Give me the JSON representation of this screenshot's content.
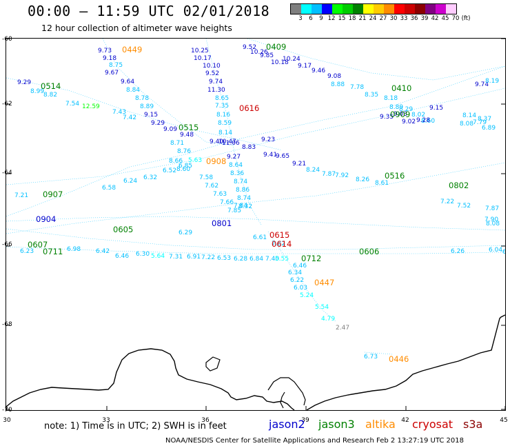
{
  "title": "00:00 – 11:59 UTC 02/01/2018",
  "subtitle": "12 hour collection of altimeter wave heights",
  "scale": {
    "colors": [
      "#7f7f7f",
      "#00ffff",
      "#00bfff",
      "#0000ff",
      "#00ff00",
      "#00cc00",
      "#008000",
      "#ffff00",
      "#ffcc00",
      "#ff8c00",
      "#ff0000",
      "#cc0000",
      "#8b0000",
      "#800080",
      "#cc00cc",
      "#ffccff"
    ],
    "labels": [
      "3",
      "6",
      "9",
      "12",
      "15",
      "18",
      "21",
      "24",
      "27",
      "30",
      "33",
      "36",
      "39",
      "42",
      "45",
      "70",
      "(ft)"
    ]
  },
  "latitudes": [
    "-60",
    "-62",
    "-64",
    "-66",
    "-68",
    "-70"
  ],
  "longitudes": [
    "30",
    "33",
    "36",
    "39",
    "42",
    "45"
  ],
  "note": "note:  1) Time is in UTC;  2) SWH is in feet",
  "satellites": [
    {
      "name": "jason2",
      "color": "#0000cc"
    },
    {
      "name": "jason3",
      "color": "#008000"
    },
    {
      "name": "altika",
      "color": "#ff8c00"
    },
    {
      "name": "cryosat",
      "color": "#cc0000"
    },
    {
      "name": "s3a",
      "color": "#8b0000"
    }
  ],
  "footer": "NOAA/NESDIS Center for Satellite Applications and Research     Feb  2 13:27:19 UTC 2018",
  "pass_labels": [
    {
      "t": "0449",
      "c": "#ff8c00"
    },
    {
      "t": "0409",
      "c": "#008000"
    },
    {
      "t": "0514",
      "c": "#008000"
    },
    {
      "t": "0410",
      "c": "#008000"
    },
    {
      "t": "0616",
      "c": "#cc0000"
    },
    {
      "t": "0909",
      "c": "#008000"
    },
    {
      "t": "0515",
      "c": "#008000"
    },
    {
      "t": "0908",
      "c": "#ff8c00"
    },
    {
      "t": "0516",
      "c": "#008000"
    },
    {
      "t": "0907",
      "c": "#008000"
    },
    {
      "t": "0802",
      "c": "#008000"
    },
    {
      "t": "0904",
      "c": "#0000cc"
    },
    {
      "t": "0801",
      "c": "#0000cc"
    },
    {
      "t": "0605",
      "c": "#008000"
    },
    {
      "t": "0615",
      "c": "#cc0000"
    },
    {
      "t": "0614",
      "c": "#cc0000"
    },
    {
      "t": "0607",
      "c": "#008000"
    },
    {
      "t": "0606",
      "c": "#008000"
    },
    {
      "t": "0711",
      "c": "#008000"
    },
    {
      "t": "0712",
      "c": "#008000"
    },
    {
      "t": "0447",
      "c": "#ff8c00"
    },
    {
      "t": "0446",
      "c": "#ff8c00"
    }
  ],
  "readings": [
    {
      "t": "9.73",
      "c": "#0000cc"
    },
    {
      "t": "9.18",
      "c": "#0000cc"
    },
    {
      "t": "8.75",
      "c": "#00bfff"
    },
    {
      "t": "9.67",
      "c": "#0000cc"
    },
    {
      "t": "9.64",
      "c": "#0000cc"
    },
    {
      "t": "8.84",
      "c": "#00bfff"
    },
    {
      "t": "8.78",
      "c": "#00bfff"
    },
    {
      "t": "8.89",
      "c": "#00bfff"
    },
    {
      "t": "9.15",
      "c": "#0000cc"
    },
    {
      "t": "9.29",
      "c": "#0000cc"
    },
    {
      "t": "9.09",
      "c": "#0000cc"
    },
    {
      "t": "9.48",
      "c": "#0000cc"
    },
    {
      "t": "8.71",
      "c": "#00bfff"
    },
    {
      "t": "8.76",
      "c": "#00bfff"
    },
    {
      "t": "8.66",
      "c": "#00bfff"
    },
    {
      "t": "8.60",
      "c": "#00bfff"
    },
    {
      "t": "7.58",
      "c": "#00bfff"
    },
    {
      "t": "7.62",
      "c": "#00bfff"
    },
    {
      "t": "7.63",
      "c": "#00bfff"
    },
    {
      "t": "7.66",
      "c": "#00bfff"
    },
    {
      "t": "7.85",
      "c": "#00bfff"
    },
    {
      "t": "10.25",
      "c": "#0000cc"
    },
    {
      "t": "10.17",
      "c": "#0000cc"
    },
    {
      "t": "10.10",
      "c": "#0000cc"
    },
    {
      "t": "9.52",
      "c": "#0000cc"
    },
    {
      "t": "9.74",
      "c": "#0000cc"
    },
    {
      "t": "11.30",
      "c": "#0000cc"
    },
    {
      "t": "8.65",
      "c": "#00bfff"
    },
    {
      "t": "7.35",
      "c": "#00bfff"
    },
    {
      "t": "8.16",
      "c": "#00bfff"
    },
    {
      "t": "8.59",
      "c": "#00bfff"
    },
    {
      "t": "8.14",
      "c": "#00bfff"
    },
    {
      "t": "10.47",
      "c": "#0000cc"
    },
    {
      "t": "11.06",
      "c": "#0000cc"
    },
    {
      "t": "9.40",
      "c": "#0000cc"
    },
    {
      "t": "9.27",
      "c": "#0000cc"
    },
    {
      "t": "8.64",
      "c": "#00bfff"
    },
    {
      "t": "8.36",
      "c": "#00bfff"
    },
    {
      "t": "8.74",
      "c": "#00bfff"
    },
    {
      "t": "8.86",
      "c": "#00bfff"
    },
    {
      "t": "8.74",
      "c": "#00bfff"
    },
    {
      "t": "8.32",
      "c": "#00bfff"
    },
    {
      "t": "9.52",
      "c": "#0000cc"
    },
    {
      "t": "10.26",
      "c": "#0000cc"
    },
    {
      "t": "9.85",
      "c": "#0000cc"
    },
    {
      "t": "10.18",
      "c": "#0000cc"
    },
    {
      "t": "10.24",
      "c": "#0000cc"
    },
    {
      "t": "9.17",
      "c": "#0000cc"
    },
    {
      "t": "9.46",
      "c": "#0000cc"
    },
    {
      "t": "9.08",
      "c": "#0000cc"
    },
    {
      "t": "8.88",
      "c": "#00bfff"
    },
    {
      "t": "7.78",
      "c": "#00bfff"
    },
    {
      "t": "8.35",
      "c": "#00bfff"
    },
    {
      "t": "8.18",
      "c": "#00bfff"
    },
    {
      "t": "8.89",
      "c": "#00bfff"
    },
    {
      "t": "9.03",
      "c": "#0000cc"
    },
    {
      "t": "9.02",
      "c": "#0000cc"
    },
    {
      "t": "9.15",
      "c": "#0000cc"
    },
    {
      "t": "9.74",
      "c": "#0000cc"
    },
    {
      "t": "8.19",
      "c": "#00bfff"
    },
    {
      "t": "9.35",
      "c": "#0000cc"
    },
    {
      "t": "8.02",
      "c": "#00bfff"
    },
    {
      "t": "8.60",
      "c": "#00bfff"
    },
    {
      "t": "9.23",
      "c": "#0000cc"
    },
    {
      "t": "8.83",
      "c": "#0000cc"
    },
    {
      "t": "9.41",
      "c": "#0000cc"
    },
    {
      "t": "9.65",
      "c": "#0000cc"
    },
    {
      "t": "9.21",
      "c": "#0000cc"
    },
    {
      "t": "8.24",
      "c": "#00bfff"
    },
    {
      "t": "7.87",
      "c": "#00bfff"
    },
    {
      "t": "7.92",
      "c": "#00bfff"
    },
    {
      "t": "8.26",
      "c": "#00bfff"
    },
    {
      "t": "8.61",
      "c": "#00bfff"
    },
    {
      "t": "8.29",
      "c": "#00bfff"
    },
    {
      "t": "9.28",
      "c": "#0000cc"
    },
    {
      "t": "8.08",
      "c": "#00bfff"
    },
    {
      "t": "8.37",
      "c": "#00bfff"
    },
    {
      "t": "9.29",
      "c": "#0000cc"
    },
    {
      "t": "8.99",
      "c": "#00bfff"
    },
    {
      "t": "8.82",
      "c": "#00bfff"
    },
    {
      "t": "7.54",
      "c": "#00bfff"
    },
    {
      "t": "12.59",
      "c": "#00ff00"
    },
    {
      "t": "7.43",
      "c": "#00bfff"
    },
    {
      "t": "7.42",
      "c": "#00bfff"
    },
    {
      "t": "6.58",
      "c": "#00bfff"
    },
    {
      "t": "6.24",
      "c": "#00bfff"
    },
    {
      "t": "6.32",
      "c": "#00bfff"
    },
    {
      "t": "6.52",
      "c": "#00bfff"
    },
    {
      "t": "6.85",
      "c": "#00bfff"
    },
    {
      "t": "5.63",
      "c": "#00ffff"
    },
    {
      "t": "7.21",
      "c": "#00bfff"
    },
    {
      "t": "7.22",
      "c": "#00bfff"
    },
    {
      "t": "7.52",
      "c": "#00bfff"
    },
    {
      "t": "7.87",
      "c": "#00bfff"
    },
    {
      "t": "7.90",
      "c": "#00bfff"
    },
    {
      "t": "8.08",
      "c": "#00bfff"
    },
    {
      "t": "8.14",
      "c": "#00bfff"
    },
    {
      "t": "7.79",
      "c": "#00bfff"
    },
    {
      "t": "6.89",
      "c": "#00bfff"
    },
    {
      "t": "6.46",
      "c": "#00bfff"
    },
    {
      "t": "6.34",
      "c": "#00bfff"
    },
    {
      "t": "6.22",
      "c": "#00bfff"
    },
    {
      "t": "6.03",
      "c": "#00bfff"
    },
    {
      "t": "5.24",
      "c": "#00ffff"
    },
    {
      "t": "5.54",
      "c": "#00ffff"
    },
    {
      "t": "4.79",
      "c": "#00ffff"
    },
    {
      "t": "2.47",
      "c": "#7f7f7f"
    },
    {
      "t": "6.73",
      "c": "#00bfff"
    },
    {
      "t": "6.23",
      "c": "#00bfff"
    },
    {
      "t": "6.98",
      "c": "#00bfff"
    },
    {
      "t": "6.42",
      "c": "#00bfff"
    },
    {
      "t": "6.46",
      "c": "#00bfff"
    },
    {
      "t": "6.30",
      "c": "#00bfff"
    },
    {
      "t": "5.64",
      "c": "#00ffff"
    },
    {
      "t": "7.31",
      "c": "#00bfff"
    },
    {
      "t": "6.91",
      "c": "#00bfff"
    },
    {
      "t": "7.22",
      "c": "#00bfff"
    },
    {
      "t": "6.53",
      "c": "#00bfff"
    },
    {
      "t": "6.28",
      "c": "#00bfff"
    },
    {
      "t": "6.84",
      "c": "#00bfff"
    },
    {
      "t": "7.40",
      "c": "#00bfff"
    },
    {
      "t": "7.82",
      "c": "#00bfff"
    },
    {
      "t": "6.61",
      "c": "#00bfff"
    },
    {
      "t": "5.55",
      "c": "#00ffff"
    },
    {
      "t": "6.26",
      "c": "#00bfff"
    },
    {
      "t": "6.04",
      "c": "#00bfff"
    },
    {
      "t": "6.30",
      "c": "#00bfff"
    },
    {
      "t": "7.84",
      "c": "#00bfff"
    },
    {
      "t": "6.29",
      "c": "#00bfff"
    }
  ]
}
